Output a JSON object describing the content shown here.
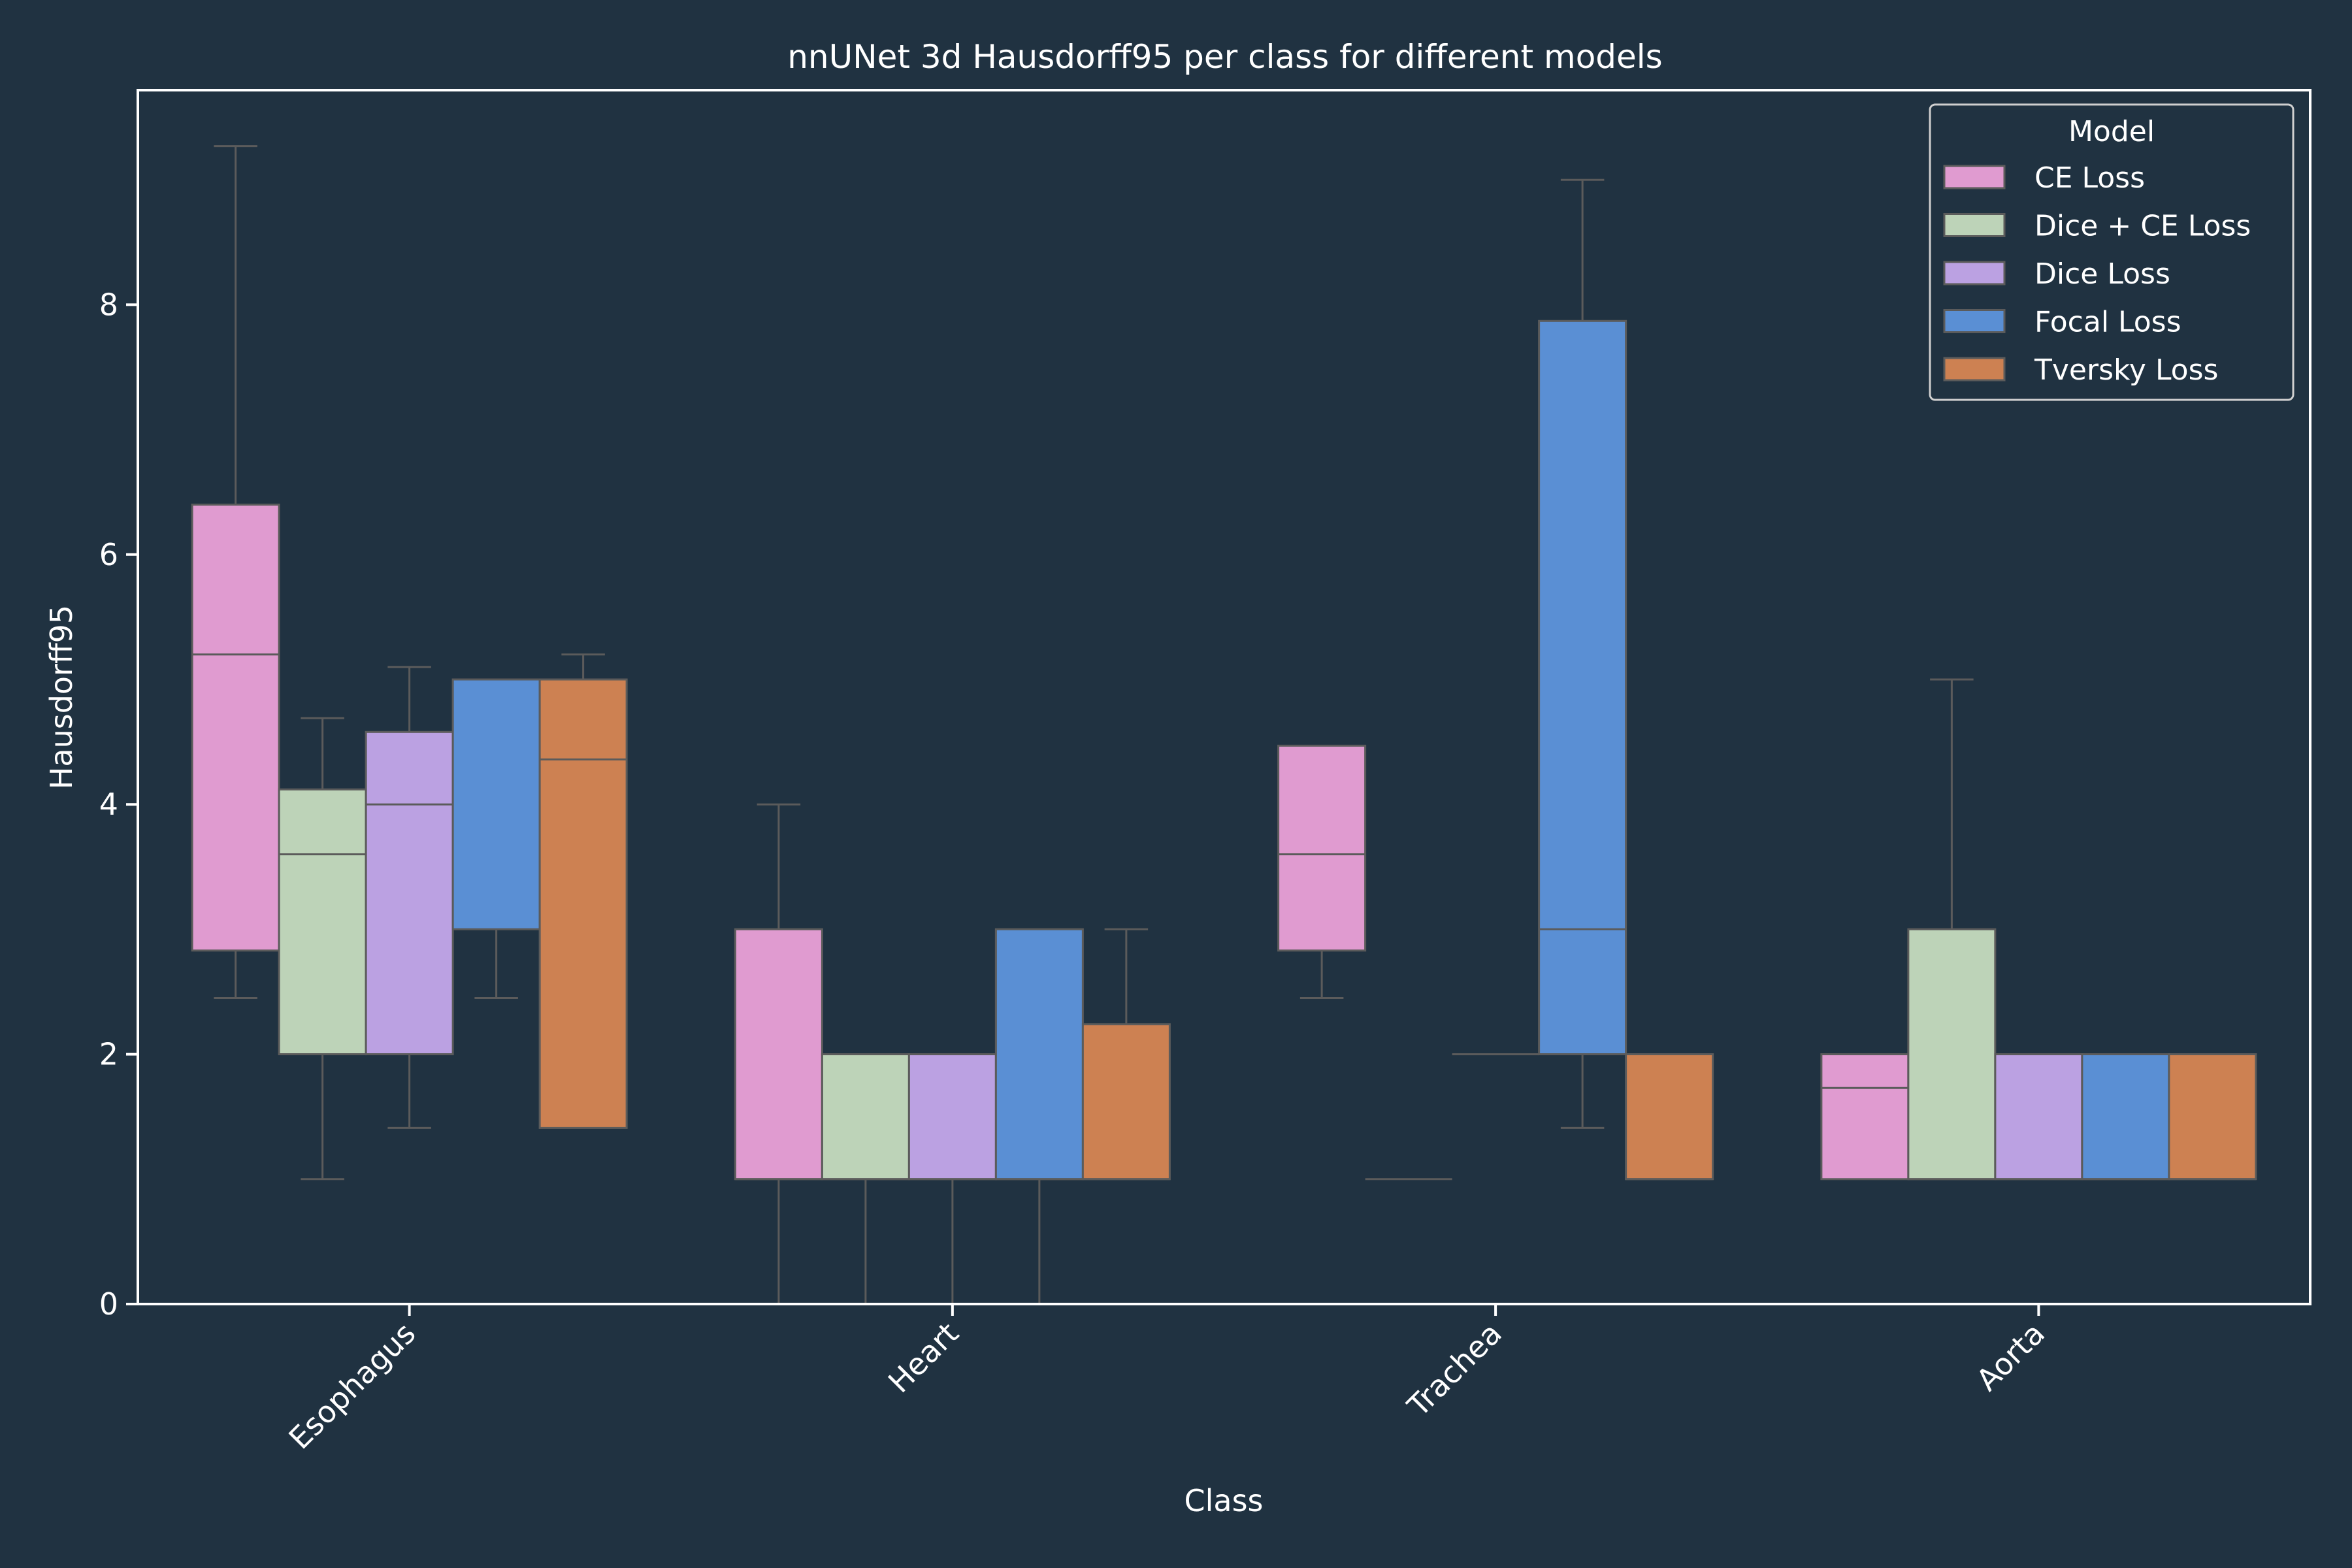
{
  "colors": {
    "background": "#203241",
    "axes": "#ffffff",
    "text": "#ffffff",
    "box_edge": "#5b5b5b",
    "whisker": "#5b5b5b"
  },
  "chart_data": {
    "type": "box",
    "title": "nnUNet 3d Hausdorff95 per class for different models",
    "xlabel": "Class",
    "ylabel": "Hausdorff95",
    "ylim": [
      0,
      9.8
    ],
    "yticks": [
      0,
      2,
      4,
      6,
      8
    ],
    "grid": false,
    "categories": [
      "Esophagus",
      "Heart",
      "Trachea",
      "Aorta"
    ],
    "legend": {
      "title": "Model",
      "placement": "top-right"
    },
    "series": [
      {
        "name": "CE Loss",
        "color": "#e09bd0",
        "boxes": [
          {
            "whislo": 2.45,
            "q1": 2.83,
            "med": 5.2,
            "q3": 6.4,
            "whishi": 9.27
          },
          {
            "whislo": 0,
            "q1": 1,
            "med": 1,
            "q3": 3,
            "whishi": 4
          },
          {
            "whislo": 2.45,
            "q1": 2.83,
            "med": 3.6,
            "q3": 4.47,
            "whishi": 4.47
          },
          {
            "whislo": 1,
            "q1": 1,
            "med": 1.73,
            "q3": 2,
            "whishi": 2
          }
        ]
      },
      {
        "name": "Dice + CE Loss",
        "color": "#bdd3b8",
        "boxes": [
          {
            "whislo": 1,
            "q1": 2,
            "med": 3.6,
            "q3": 4.12,
            "whishi": 4.69
          },
          {
            "whislo": 0,
            "q1": 1,
            "med": 1,
            "q3": 2,
            "whishi": 2
          },
          {
            "whislo": 1,
            "q1": 1,
            "med": 1,
            "q3": 1,
            "whishi": 1
          },
          {
            "whislo": 1,
            "q1": 1,
            "med": 1,
            "q3": 3,
            "whishi": 5
          }
        ]
      },
      {
        "name": "Dice Loss",
        "color": "#bba1e2",
        "boxes": [
          {
            "whislo": 1.41,
            "q1": 2,
            "med": 4,
            "q3": 4.58,
            "whishi": 5.1
          },
          {
            "whislo": 0,
            "q1": 1,
            "med": 1,
            "q3": 2,
            "whishi": 2
          },
          null,
          {
            "whislo": 1,
            "q1": 1,
            "med": 1,
            "q3": 2,
            "whishi": 2
          }
        ]
      },
      {
        "name": "Focal Loss",
        "color": "#5a8fd4",
        "boxes": [
          {
            "whislo": 2.45,
            "q1": 3,
            "med": 5,
            "q3": 5,
            "whishi": 5
          },
          {
            "whislo": 0,
            "q1": 1,
            "med": 1,
            "q3": 3,
            "whishi": 3
          },
          {
            "whislo": 1.41,
            "q1": 2,
            "med": 3,
            "q3": 7.87,
            "whishi": 9
          },
          {
            "whislo": 1,
            "q1": 1,
            "med": 1,
            "q3": 2,
            "whishi": 2
          }
        ]
      },
      {
        "name": "Tversky Loss",
        "color": "#cd8152",
        "boxes": [
          {
            "whislo": 1.41,
            "q1": 1.41,
            "med": 4.36,
            "q3": 5,
            "whishi": 5.2
          },
          {
            "whislo": 1,
            "q1": 1,
            "med": 1,
            "q3": 2.24,
            "whishi": 3
          },
          {
            "whislo": 1,
            "q1": 1,
            "med": 1,
            "q3": 2,
            "whishi": 2
          },
          {
            "whislo": 1,
            "q1": 1,
            "med": 1,
            "q3": 2,
            "whishi": 2
          }
        ]
      }
    ],
    "zero_width_lines": [
      {
        "category": "Trachea",
        "series": "Dice Loss",
        "value": 2
      }
    ]
  }
}
